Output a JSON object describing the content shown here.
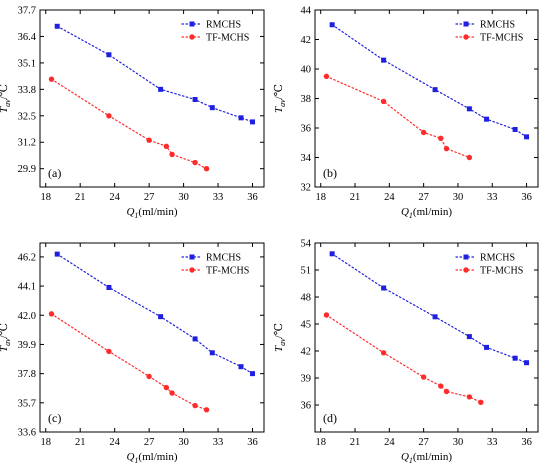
{
  "chart_data": [
    {
      "type": "line",
      "panel_label": "(a)",
      "xlabel_main": "Q",
      "xlabel_sub": "1",
      "xlabel_unit": "(ml/min)",
      "ylabel_main": "T",
      "ylabel_sub": "av",
      "ylabel_unit": "/℃",
      "xlim": [
        17.5,
        37
      ],
      "ylim": [
        29.0,
        37.7
      ],
      "xticks": [
        18,
        21,
        24,
        27,
        30,
        33,
        36
      ],
      "yticks": [
        29.9,
        31.2,
        32.5,
        33.8,
        35.1,
        36.4,
        37.7
      ],
      "legend_position": "top-right",
      "series": [
        {
          "name": "RMCHS",
          "color": "#1f1fe0",
          "marker": "square",
          "x": [
            19,
            23.5,
            28,
            31,
            32.5,
            35,
            36
          ],
          "y": [
            36.9,
            35.5,
            33.8,
            33.3,
            32.9,
            32.4,
            32.2
          ]
        },
        {
          "name": "TF-MCHS",
          "color": "#ff2b2b",
          "marker": "circle",
          "x": [
            18.5,
            23.5,
            27,
            28.5,
            29,
            31,
            32
          ],
          "y": [
            34.3,
            32.5,
            31.3,
            31.0,
            30.6,
            30.2,
            29.9
          ]
        }
      ]
    },
    {
      "type": "line",
      "panel_label": "(b)",
      "xlabel_main": "Q",
      "xlabel_sub": "1",
      "xlabel_unit": "(ml/min)",
      "ylabel_main": "T",
      "ylabel_sub": "av",
      "ylabel_unit": "/℃",
      "xlim": [
        17.5,
        37
      ],
      "ylim": [
        32,
        44
      ],
      "xticks": [
        18,
        21,
        24,
        27,
        30,
        33,
        36
      ],
      "yticks": [
        32,
        34,
        36,
        38,
        40,
        42,
        44
      ],
      "legend_position": "top-right",
      "series": [
        {
          "name": "RMCHS",
          "color": "#1f1fe0",
          "marker": "square",
          "x": [
            19,
            23.5,
            28,
            31,
            32.5,
            35,
            36
          ],
          "y": [
            43.0,
            40.6,
            38.6,
            37.3,
            36.6,
            35.9,
            35.4
          ]
        },
        {
          "name": "TF-MCHS",
          "color": "#ff2b2b",
          "marker": "circle",
          "x": [
            18.5,
            23.5,
            27,
            28.5,
            29,
            31
          ],
          "y": [
            39.5,
            37.8,
            35.7,
            35.3,
            34.6,
            34.0
          ]
        }
      ]
    },
    {
      "type": "line",
      "panel_label": "(c)",
      "xlabel_main": "Q",
      "xlabel_sub": "1",
      "xlabel_unit": "(ml/min)",
      "ylabel_main": "T",
      "ylabel_sub": "av",
      "ylabel_unit": "/℃",
      "xlim": [
        17.5,
        37
      ],
      "ylim": [
        33.6,
        47.2
      ],
      "xticks": [
        18,
        21,
        24,
        27,
        30,
        33,
        36
      ],
      "yticks": [
        33.6,
        35.7,
        37.8,
        39.9,
        42.0,
        44.1,
        46.2
      ],
      "legend_position": "top-right",
      "series": [
        {
          "name": "RMCHS",
          "color": "#1f1fe0",
          "marker": "square",
          "x": [
            19,
            23.5,
            28,
            31,
            32.5,
            35,
            36
          ],
          "y": [
            46.4,
            44.0,
            41.9,
            40.3,
            39.3,
            38.3,
            37.8
          ]
        },
        {
          "name": "TF-MCHS",
          "color": "#ff2b2b",
          "marker": "circle",
          "x": [
            18.5,
            23.5,
            27,
            28.5,
            29,
            31,
            32
          ],
          "y": [
            42.1,
            39.4,
            37.6,
            36.8,
            36.4,
            35.5,
            35.2
          ]
        }
      ]
    },
    {
      "type": "line",
      "panel_label": "(d)",
      "xlabel_main": "Q",
      "xlabel_sub": "1",
      "xlabel_unit": "(ml/min)",
      "ylabel_main": "T",
      "ylabel_sub": "av",
      "ylabel_unit": "/℃",
      "xlim": [
        17.5,
        37
      ],
      "ylim": [
        33,
        54
      ],
      "xticks": [
        18,
        21,
        24,
        27,
        30,
        33,
        36
      ],
      "yticks": [
        36,
        39,
        42,
        45,
        48,
        51,
        54
      ],
      "legend_position": "top-right",
      "series": [
        {
          "name": "RMCHS",
          "color": "#1f1fe0",
          "marker": "square",
          "x": [
            19,
            23.5,
            28,
            31,
            32.5,
            35,
            36
          ],
          "y": [
            52.8,
            49.0,
            45.8,
            43.6,
            42.4,
            41.2,
            40.7
          ]
        },
        {
          "name": "TF-MCHS",
          "color": "#ff2b2b",
          "marker": "circle",
          "x": [
            18.5,
            23.5,
            27,
            28.5,
            29,
            31,
            32
          ],
          "y": [
            46.0,
            41.8,
            39.1,
            38.1,
            37.5,
            36.9,
            36.3
          ]
        }
      ]
    }
  ]
}
